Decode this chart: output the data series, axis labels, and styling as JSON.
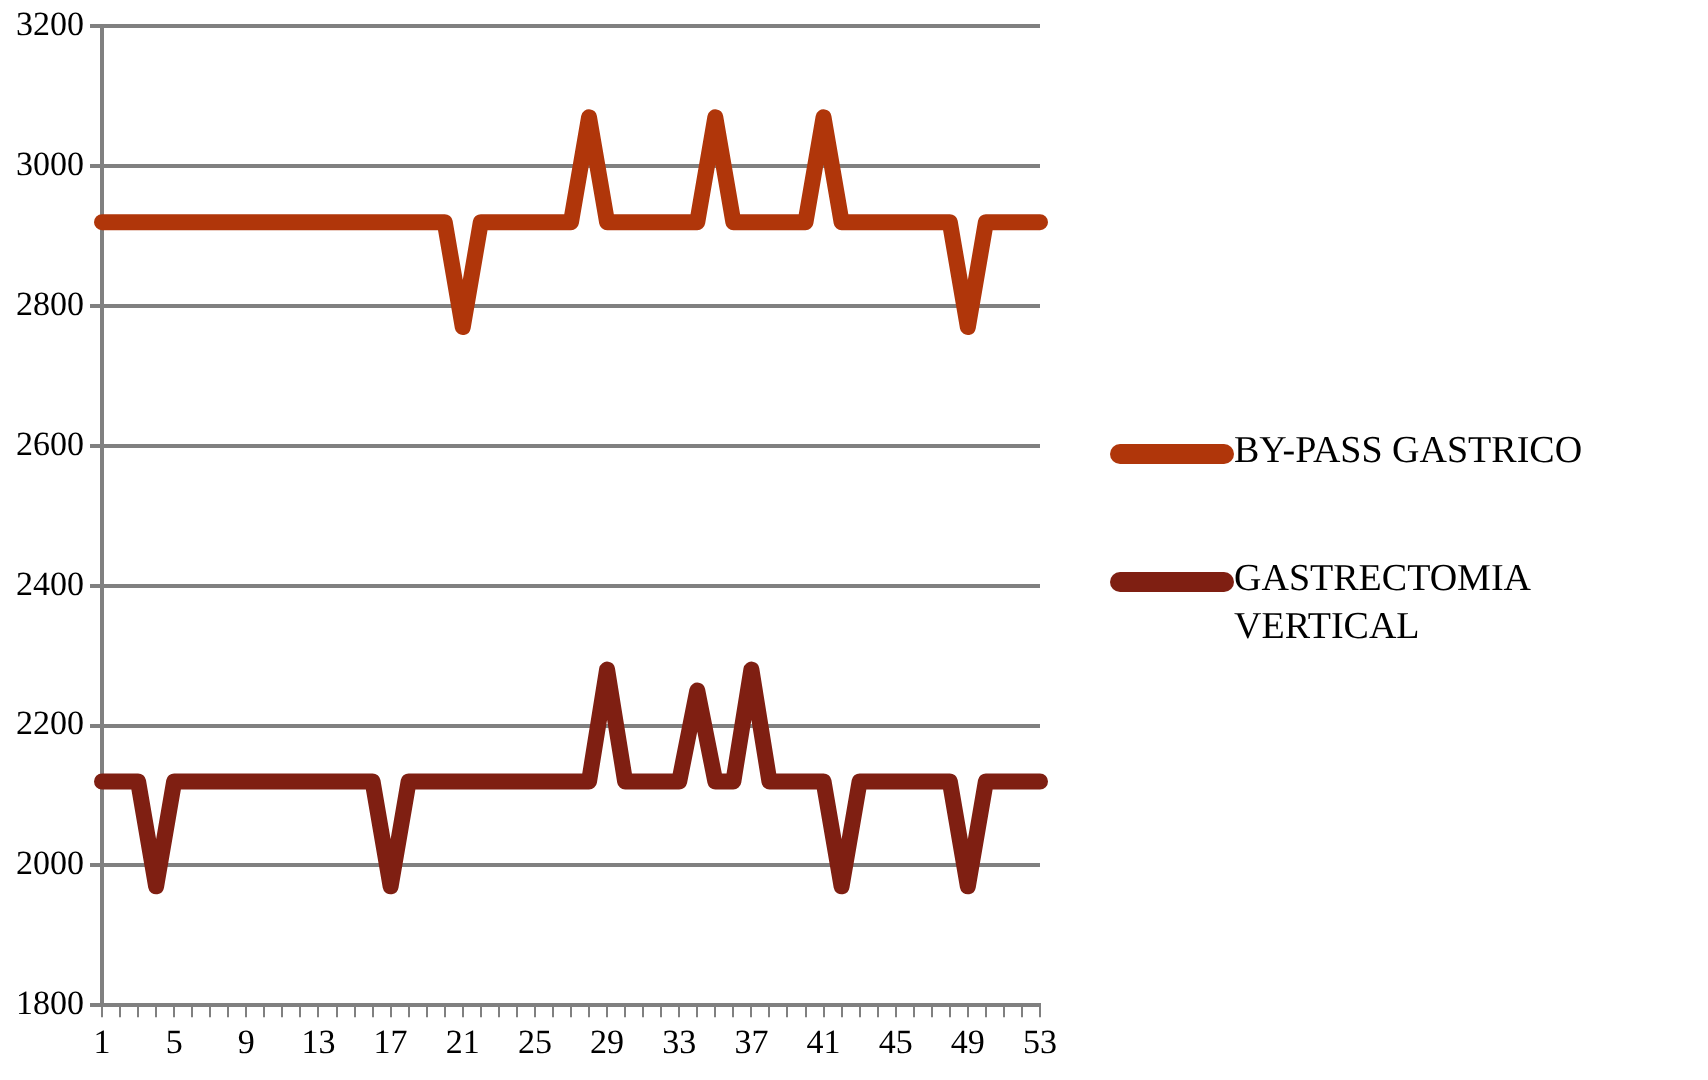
{
  "chart_data": {
    "type": "line",
    "categories": [
      "1",
      null,
      null,
      null,
      "5",
      null,
      null,
      null,
      "9",
      null,
      null,
      null,
      "13",
      null,
      null,
      null,
      "17",
      null,
      null,
      null,
      "21",
      null,
      null,
      null,
      "25",
      null,
      null,
      null,
      "29",
      null,
      null,
      null,
      "33",
      null,
      null,
      null,
      "37",
      null,
      null,
      null,
      "41",
      null,
      null,
      null,
      "45",
      null,
      null,
      null,
      "49",
      null,
      null,
      null,
      "53"
    ],
    "series": [
      {
        "name": "BY-PASS GASTRICO",
        "color": "#b0360a",
        "values": [
          2920,
          2920,
          2920,
          2920,
          2920,
          2920,
          2920,
          2920,
          2920,
          2920,
          2920,
          2920,
          2920,
          2920,
          2920,
          2920,
          2920,
          2920,
          2920,
          2920,
          2770,
          2920,
          2920,
          2920,
          2920,
          2920,
          2920,
          3070,
          2920,
          2920,
          2920,
          2920,
          2920,
          2920,
          3070,
          2920,
          2920,
          2920,
          2920,
          2920,
          3070,
          2920,
          2920,
          2920,
          2920,
          2920,
          2920,
          2920,
          2770,
          2920,
          2920,
          2920,
          2920
        ]
      },
      {
        "name": "GASTRECTOMIA VERTICAL",
        "color": "#7f1f12",
        "values": [
          2120,
          2120,
          2120,
          1970,
          2120,
          2120,
          2120,
          2120,
          2120,
          2120,
          2120,
          2120,
          2120,
          2120,
          2120,
          2120,
          1970,
          2120,
          2120,
          2120,
          2120,
          2120,
          2120,
          2120,
          2120,
          2120,
          2120,
          2120,
          2280,
          2120,
          2120,
          2120,
          2120,
          2250,
          2120,
          2120,
          2280,
          2120,
          2120,
          2120,
          2120,
          1970,
          2120,
          2120,
          2120,
          2120,
          2120,
          2120,
          1970,
          2120,
          2120,
          2120,
          2120
        ]
      }
    ],
    "ylim": [
      1800,
      3200
    ],
    "yticks": [
      1800,
      2000,
      2200,
      2400,
      2600,
      2800,
      3000,
      3200
    ],
    "grid": "y",
    "legend": "right",
    "marker": "none",
    "line_style": "solid"
  }
}
